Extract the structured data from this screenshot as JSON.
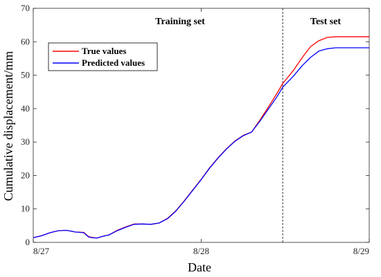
{
  "chart_data": {
    "type": "line",
    "xlabel": "Date",
    "ylabel": "Cumulative displacement/mm",
    "x_tick_labels": [
      "8/27",
      "8/28",
      "8/29"
    ],
    "xlim": [
      0,
      2
    ],
    "ylim": [
      0,
      70
    ],
    "y_ticks": [
      0,
      10,
      20,
      30,
      40,
      50,
      60,
      70
    ],
    "grid": false,
    "legend_position": "top-left",
    "split_x": 1.485,
    "split_style": "dashed",
    "regions": [
      {
        "label": "Training set"
      },
      {
        "label": "Test set"
      }
    ],
    "series": [
      {
        "name": "True values",
        "color": "#ff0000",
        "x": [
          0,
          0.05,
          0.1,
          0.15,
          0.2,
          0.25,
          0.3,
          0.33,
          0.35,
          0.38,
          0.4,
          0.42,
          0.45,
          0.5,
          0.55,
          0.6,
          0.65,
          0.7,
          0.75,
          0.8,
          0.85,
          0.9,
          0.95,
          1.0,
          1.05,
          1.1,
          1.15,
          1.2,
          1.25,
          1.3,
          1.35,
          1.4,
          1.45,
          1.485,
          1.55,
          1.6,
          1.65,
          1.7,
          1.75,
          1.8,
          1.85,
          1.9,
          1.95,
          2.0
        ],
        "values": [
          1.4,
          2.0,
          2.9,
          3.5,
          3.6,
          3.1,
          3.0,
          1.7,
          1.5,
          1.3,
          1.6,
          1.9,
          2.2,
          3.6,
          4.6,
          5.5,
          5.5,
          5.4,
          5.8,
          7.2,
          9.5,
          12.5,
          15.7,
          18.9,
          22.3,
          25.3,
          28.0,
          30.3,
          32.0,
          33.0,
          36.6,
          40.5,
          44.5,
          47.5,
          51.5,
          55.2,
          58.5,
          60.3,
          61.3,
          61.5,
          61.5,
          61.5,
          61.5,
          61.5
        ]
      },
      {
        "name": "Predicted values",
        "color": "#0000ff",
        "x": [
          0,
          0.05,
          0.1,
          0.15,
          0.2,
          0.25,
          0.3,
          0.33,
          0.35,
          0.38,
          0.4,
          0.42,
          0.45,
          0.5,
          0.55,
          0.6,
          0.65,
          0.7,
          0.75,
          0.8,
          0.85,
          0.9,
          0.95,
          1.0,
          1.05,
          1.1,
          1.15,
          1.2,
          1.25,
          1.3,
          1.35,
          1.4,
          1.45,
          1.485,
          1.55,
          1.6,
          1.65,
          1.7,
          1.75,
          1.8,
          1.85,
          1.9,
          1.95,
          2.0
        ],
        "values": [
          1.4,
          2.0,
          2.9,
          3.5,
          3.6,
          3.1,
          2.9,
          1.6,
          1.4,
          1.3,
          1.6,
          1.9,
          2.2,
          3.5,
          4.5,
          5.4,
          5.5,
          5.4,
          5.8,
          7.1,
          9.4,
          12.4,
          15.6,
          18.8,
          22.2,
          25.2,
          27.9,
          30.2,
          31.9,
          33.0,
          36.3,
          39.9,
          43.5,
          46.4,
          49.8,
          52.8,
          55.3,
          57.2,
          57.9,
          58.2,
          58.2,
          58.2,
          58.2,
          58.2
        ]
      }
    ]
  }
}
